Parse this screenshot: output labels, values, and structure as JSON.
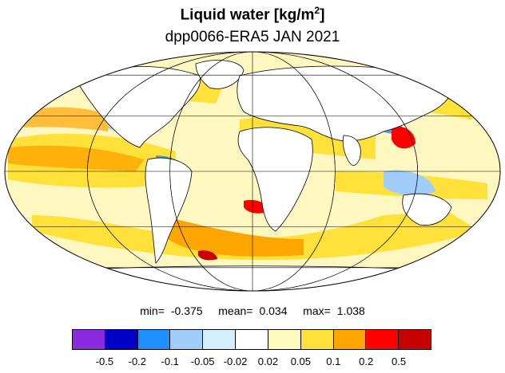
{
  "title": {
    "text": "Liquid water  [kg/m",
    "superscript": "2",
    "suffix": "]"
  },
  "subtitle": "dpp0066-ERA5 JAN 2021",
  "stats": {
    "min_label": "min=",
    "min_value": "-0.375",
    "mean_label": "mean=",
    "mean_value": "0.034",
    "max_label": "max=",
    "max_value": "1.038"
  },
  "map": {
    "projection": "mollweide",
    "graticule": true,
    "land_color": "#ffffff",
    "ocean_base_color": "#fff7c0"
  },
  "colorbar": {
    "colors": [
      "#8a2be2",
      "#0000c8",
      "#1e90ff",
      "#a0cdfa",
      "#d4f0ff",
      "#ffffff",
      "#fffabe",
      "#ffe13a",
      "#ffa500",
      "#ff0000",
      "#c80000"
    ],
    "tick_labels": [
      "-0.5",
      "-0.2",
      "-0.1",
      "-0.05",
      "-0.02",
      "0.02",
      "0.05",
      "0.1",
      "0.2",
      "0.5"
    ]
  }
}
